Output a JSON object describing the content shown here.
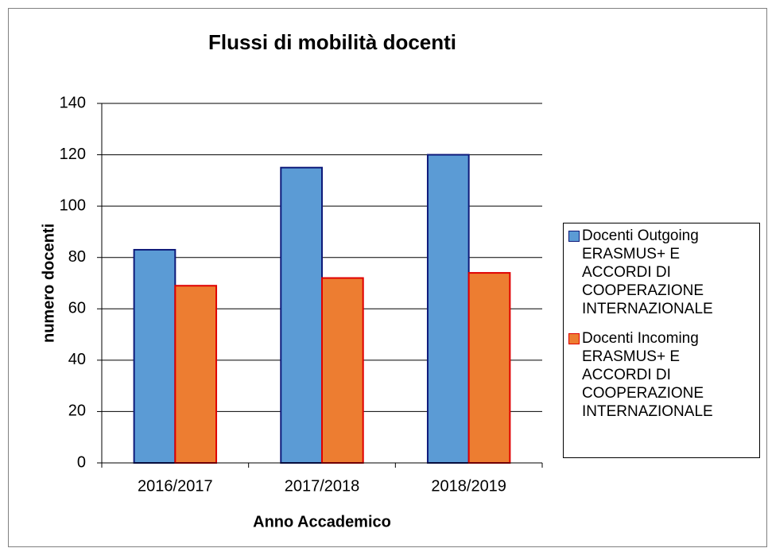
{
  "chart_data": {
    "type": "bar",
    "title": "Flussi di mobilità docenti",
    "x_label": "Anno Accademico",
    "y_label": "numero docenti",
    "categories": [
      "2016/2017",
      "2017/2018",
      "2018/2019"
    ],
    "series": [
      {
        "name": "Docenti Outgoing ERASMUS+ E ACCORDI DI COOPERAZIONE INTERNAZIONALE",
        "color": "#5b9bd5",
        "edge_color": "#0e1a7a",
        "values": [
          83,
          115,
          120
        ]
      },
      {
        "name": "Docenti Incoming ERASMUS+ E ACCORDI DI COOPERAZIONE INTERNAZIONALE",
        "color": "#ed7d31",
        "edge_color": "#e00000",
        "values": [
          69,
          72,
          74
        ]
      }
    ],
    "ylim": [
      0,
      140
    ],
    "yticks": [
      0,
      20,
      40,
      60,
      80,
      100,
      120,
      140
    ],
    "grid": true,
    "legend": "right"
  }
}
